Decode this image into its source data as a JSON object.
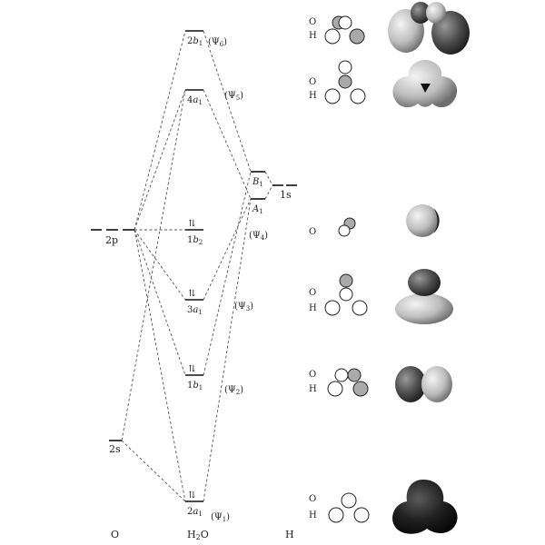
{
  "columns": {
    "oxygen": "O",
    "water": "H",
    "water_sub": "2",
    "water_tail": "O",
    "hydrogen": "H"
  },
  "oxygen_levels": {
    "p": "2p",
    "s": "2s"
  },
  "hydrogen_levels": {
    "s": "1s",
    "upper": "B",
    "upper_sub": "1",
    "lower": "A",
    "lower_sub": "1"
  },
  "mos": [
    {
      "id": "2b1",
      "num": "2",
      "sym": "b",
      "sub": "1",
      "psi": "6",
      "electrons": ""
    },
    {
      "id": "4a1",
      "num": "4",
      "sym": "a",
      "sub": "1",
      "psi": "5",
      "electrons": ""
    },
    {
      "id": "1b2",
      "num": "1",
      "sym": "b",
      "sub": "2",
      "psi": "4",
      "electrons": "⇅"
    },
    {
      "id": "3a1",
      "num": "3",
      "sym": "a",
      "sub": "1",
      "psi": "3",
      "electrons": "⇅"
    },
    {
      "id": "1b1",
      "num": "1",
      "sym": "b",
      "sub": "1",
      "psi": "2",
      "electrons": "⇅"
    },
    {
      "id": "2a1",
      "num": "2",
      "sym": "a",
      "sub": "1",
      "psi": "1",
      "electrons": "⇅"
    }
  ],
  "psi_symbol": "Ψ",
  "atom_labels": {
    "o": "O",
    "h": "H"
  }
}
